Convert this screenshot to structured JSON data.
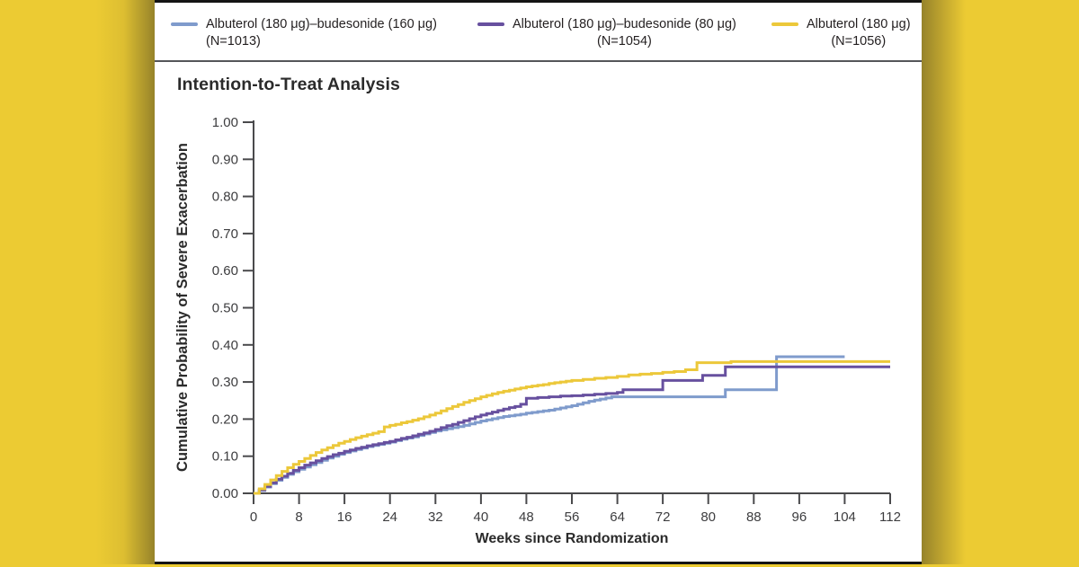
{
  "figure": {
    "panel_title": "Intention-to-Treat Analysis"
  },
  "legend": {
    "position": "top",
    "items": [
      {
        "label": "Albuterol (180 μg)–budesonide (160 μg)",
        "n": "(N=1013)",
        "color": "#7f9bcc"
      },
      {
        "label": "Albuterol (180 μg)–budesonide (80 μg)",
        "n": "(N=1054)",
        "color": "#67509f"
      },
      {
        "label": "Albuterol (180 μg)",
        "n": "(N=1056)",
        "color": "#ecc83a"
      }
    ]
  },
  "chart_data": {
    "type": "line",
    "subtype": "kaplan-meier-cumulative-incidence-steps",
    "title": "Intention-to-Treat Analysis",
    "xlabel": "Weeks since Randomization",
    "ylabel": "Cumulative Probability of Severe Exacerbation",
    "xlim": [
      0,
      112
    ],
    "ylim": [
      0,
      1
    ],
    "x_ticks": [
      0,
      8,
      16,
      24,
      32,
      40,
      48,
      56,
      64,
      72,
      80,
      88,
      96,
      104,
      112
    ],
    "y_ticks": [
      "0.00",
      "0.10",
      "0.20",
      "0.30",
      "0.40",
      "0.50",
      "0.60",
      "0.70",
      "0.80",
      "0.90",
      "1.00"
    ],
    "y_tick_values": [
      0,
      0.1,
      0.2,
      0.3,
      0.4,
      0.5,
      0.6,
      0.7,
      0.8,
      0.9,
      1.0
    ],
    "grid": false,
    "legend_position": "top",
    "series": [
      {
        "name": "Albuterol (180 μg)–budesonide (160 μg)",
        "n": 1013,
        "color": "#7f9bcc",
        "points": [
          [
            0,
            0
          ],
          [
            1,
            0.008
          ],
          [
            2,
            0.017
          ],
          [
            3,
            0.026
          ],
          [
            4,
            0.035
          ],
          [
            5,
            0.043
          ],
          [
            6,
            0.051
          ],
          [
            7,
            0.058
          ],
          [
            8,
            0.065
          ],
          [
            9,
            0.071
          ],
          [
            10,
            0.077
          ],
          [
            11,
            0.083
          ],
          [
            12,
            0.089
          ],
          [
            13,
            0.095
          ],
          [
            14,
            0.1
          ],
          [
            15,
            0.105
          ],
          [
            16,
            0.11
          ],
          [
            17,
            0.114
          ],
          [
            18,
            0.118
          ],
          [
            19,
            0.122
          ],
          [
            20,
            0.126
          ],
          [
            21,
            0.129
          ],
          [
            22,
            0.132
          ],
          [
            23,
            0.135
          ],
          [
            24,
            0.138
          ],
          [
            25,
            0.142
          ],
          [
            26,
            0.146
          ],
          [
            27,
            0.149
          ],
          [
            28,
            0.152
          ],
          [
            29,
            0.156
          ],
          [
            30,
            0.16
          ],
          [
            31,
            0.164
          ],
          [
            32,
            0.168
          ],
          [
            33,
            0.171
          ],
          [
            34,
            0.174
          ],
          [
            35,
            0.177
          ],
          [
            36,
            0.18
          ],
          [
            37,
            0.183
          ],
          [
            38,
            0.187
          ],
          [
            39,
            0.191
          ],
          [
            40,
            0.195
          ],
          [
            41,
            0.198
          ],
          [
            42,
            0.201
          ],
          [
            43,
            0.204
          ],
          [
            44,
            0.207
          ],
          [
            45,
            0.209
          ],
          [
            46,
            0.211
          ],
          [
            47,
            0.213
          ],
          [
            48,
            0.216
          ],
          [
            49,
            0.218
          ],
          [
            50,
            0.22
          ],
          [
            51,
            0.222
          ],
          [
            52,
            0.224
          ],
          [
            53,
            0.227
          ],
          [
            54,
            0.23
          ],
          [
            55,
            0.233
          ],
          [
            56,
            0.236
          ],
          [
            57,
            0.24
          ],
          [
            58,
            0.244
          ],
          [
            59,
            0.248
          ],
          [
            60,
            0.251
          ],
          [
            61,
            0.254
          ],
          [
            62,
            0.257
          ],
          [
            63,
            0.26
          ],
          [
            83,
            0.279
          ],
          [
            92,
            0.368
          ],
          [
            104,
            0.368
          ]
        ]
      },
      {
        "name": "Albuterol (180 μg)–budesonide (80 μg)",
        "n": 1054,
        "color": "#67509f",
        "points": [
          [
            0,
            0
          ],
          [
            1,
            0.009
          ],
          [
            2,
            0.019
          ],
          [
            3,
            0.028
          ],
          [
            4,
            0.038
          ],
          [
            5,
            0.046
          ],
          [
            6,
            0.054
          ],
          [
            7,
            0.062
          ],
          [
            8,
            0.069
          ],
          [
            9,
            0.076
          ],
          [
            10,
            0.082
          ],
          [
            11,
            0.088
          ],
          [
            12,
            0.094
          ],
          [
            13,
            0.099
          ],
          [
            14,
            0.104
          ],
          [
            15,
            0.108
          ],
          [
            16,
            0.113
          ],
          [
            17,
            0.117
          ],
          [
            18,
            0.121
          ],
          [
            19,
            0.124
          ],
          [
            20,
            0.128
          ],
          [
            21,
            0.131
          ],
          [
            22,
            0.134
          ],
          [
            23,
            0.137
          ],
          [
            24,
            0.14
          ],
          [
            25,
            0.144
          ],
          [
            26,
            0.148
          ],
          [
            27,
            0.151
          ],
          [
            28,
            0.155
          ],
          [
            29,
            0.159
          ],
          [
            30,
            0.163
          ],
          [
            31,
            0.167
          ],
          [
            32,
            0.172
          ],
          [
            33,
            0.177
          ],
          [
            34,
            0.182
          ],
          [
            35,
            0.186
          ],
          [
            36,
            0.191
          ],
          [
            37,
            0.196
          ],
          [
            38,
            0.201
          ],
          [
            39,
            0.206
          ],
          [
            40,
            0.211
          ],
          [
            41,
            0.215
          ],
          [
            42,
            0.219
          ],
          [
            43,
            0.223
          ],
          [
            44,
            0.227
          ],
          [
            45,
            0.231
          ],
          [
            46,
            0.234
          ],
          [
            47,
            0.24
          ],
          [
            48,
            0.256
          ],
          [
            50,
            0.258
          ],
          [
            52,
            0.26
          ],
          [
            54,
            0.262
          ],
          [
            56,
            0.263
          ],
          [
            58,
            0.265
          ],
          [
            60,
            0.267
          ],
          [
            62,
            0.269
          ],
          [
            64,
            0.272
          ],
          [
            65,
            0.279
          ],
          [
            72,
            0.304
          ],
          [
            79,
            0.318
          ],
          [
            83,
            0.341
          ],
          [
            112,
            0.341
          ]
        ]
      },
      {
        "name": "Albuterol (180 μg)",
        "n": 1056,
        "color": "#ecc83a",
        "points": [
          [
            0,
            0
          ],
          [
            1,
            0.012
          ],
          [
            2,
            0.024
          ],
          [
            3,
            0.036
          ],
          [
            4,
            0.048
          ],
          [
            5,
            0.059
          ],
          [
            6,
            0.069
          ],
          [
            7,
            0.078
          ],
          [
            8,
            0.086
          ],
          [
            9,
            0.094
          ],
          [
            10,
            0.102
          ],
          [
            11,
            0.11
          ],
          [
            12,
            0.117
          ],
          [
            13,
            0.123
          ],
          [
            14,
            0.129
          ],
          [
            15,
            0.135
          ],
          [
            16,
            0.14
          ],
          [
            17,
            0.145
          ],
          [
            18,
            0.15
          ],
          [
            19,
            0.154
          ],
          [
            20,
            0.158
          ],
          [
            21,
            0.162
          ],
          [
            22,
            0.166
          ],
          [
            23,
            0.179
          ],
          [
            24,
            0.183
          ],
          [
            25,
            0.186
          ],
          [
            26,
            0.19
          ],
          [
            27,
            0.193
          ],
          [
            28,
            0.197
          ],
          [
            29,
            0.201
          ],
          [
            30,
            0.206
          ],
          [
            31,
            0.211
          ],
          [
            32,
            0.216
          ],
          [
            33,
            0.222
          ],
          [
            34,
            0.228
          ],
          [
            35,
            0.234
          ],
          [
            36,
            0.239
          ],
          [
            37,
            0.245
          ],
          [
            38,
            0.25
          ],
          [
            39,
            0.255
          ],
          [
            40,
            0.26
          ],
          [
            41,
            0.264
          ],
          [
            42,
            0.268
          ],
          [
            43,
            0.272
          ],
          [
            44,
            0.275
          ],
          [
            45,
            0.278
          ],
          [
            46,
            0.281
          ],
          [
            47,
            0.284
          ],
          [
            48,
            0.287
          ],
          [
            49,
            0.289
          ],
          [
            50,
            0.291
          ],
          [
            51,
            0.293
          ],
          [
            52,
            0.296
          ],
          [
            53,
            0.298
          ],
          [
            54,
            0.3
          ],
          [
            55,
            0.302
          ],
          [
            56,
            0.304
          ],
          [
            58,
            0.307
          ],
          [
            60,
            0.31
          ],
          [
            62,
            0.312
          ],
          [
            64,
            0.315
          ],
          [
            66,
            0.319
          ],
          [
            68,
            0.321
          ],
          [
            70,
            0.323
          ],
          [
            72,
            0.326
          ],
          [
            74,
            0.328
          ],
          [
            76,
            0.333
          ],
          [
            78,
            0.352
          ],
          [
            84,
            0.355
          ],
          [
            112,
            0.355
          ]
        ]
      }
    ]
  },
  "colors": {
    "background_yellow": "#eccb33",
    "background_olive_edge": "#96832a",
    "panel_white": "#ffffff",
    "frame_black": "#141414",
    "divider_gray": "#55565a",
    "axis_gray": "#4a4a4c",
    "text_dark": "#231f20"
  }
}
